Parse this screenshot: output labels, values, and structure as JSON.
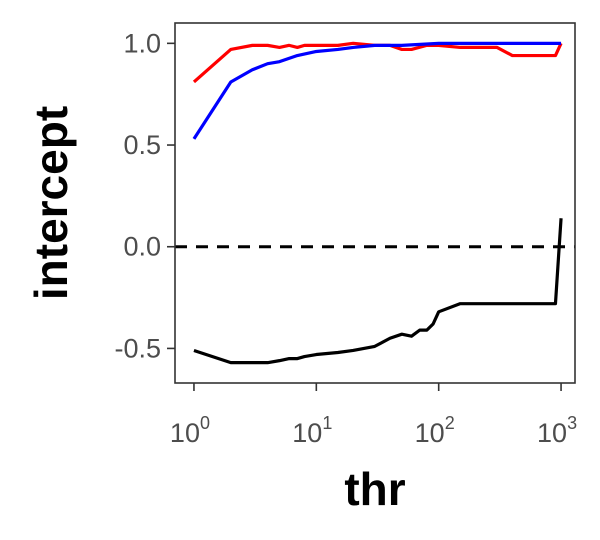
{
  "chart_data": {
    "type": "line",
    "xlabel": "thr",
    "ylabel": "intercept",
    "x_scale": "log10",
    "xlim": [
      0.7,
      1300
    ],
    "ylim": [
      -0.67,
      1.1
    ],
    "x_ticks": [
      {
        "value": 1,
        "base": "10",
        "exp": "0"
      },
      {
        "value": 10,
        "base": "10",
        "exp": "1"
      },
      {
        "value": 100,
        "base": "10",
        "exp": "2"
      },
      {
        "value": 1000,
        "base": "10",
        "exp": "3"
      }
    ],
    "y_ticks": [
      {
        "value": 1.0,
        "label": "1.0"
      },
      {
        "value": 0.5,
        "label": "0.5"
      },
      {
        "value": 0.0,
        "label": "0.0"
      },
      {
        "value": -0.5,
        "label": "-0.5"
      }
    ],
    "reference_line": {
      "y": 0,
      "style": "dashed",
      "color": "#000000"
    },
    "grid": false,
    "legend": "none",
    "series": [
      {
        "color": "#ff0000",
        "x": [
          1,
          2,
          3,
          4,
          5,
          6,
          7,
          8,
          10,
          15,
          20,
          30,
          40,
          50,
          60,
          80,
          100,
          150,
          200,
          300,
          400,
          500,
          700,
          900,
          1000
        ],
        "y": [
          0.81,
          0.97,
          0.99,
          0.99,
          0.98,
          0.99,
          0.98,
          0.99,
          0.99,
          0.99,
          1.0,
          0.99,
          0.99,
          0.97,
          0.97,
          0.99,
          0.99,
          0.98,
          0.98,
          0.98,
          0.94,
          0.94,
          0.94,
          0.94,
          1.0
        ]
      },
      {
        "color": "#0000ff",
        "x": [
          1,
          2,
          3,
          4,
          5,
          7,
          10,
          15,
          20,
          30,
          50,
          100,
          200,
          500,
          1000
        ],
        "y": [
          0.53,
          0.81,
          0.87,
          0.9,
          0.91,
          0.94,
          0.96,
          0.97,
          0.98,
          0.99,
          0.99,
          1.0,
          1.0,
          1.0,
          1.0
        ]
      },
      {
        "color": "#000000",
        "x": [
          1,
          2,
          3,
          4,
          5,
          6,
          7,
          8,
          10,
          15,
          20,
          30,
          40,
          50,
          60,
          70,
          80,
          90,
          100,
          150,
          200,
          300,
          500,
          700,
          900,
          1000
        ],
        "y": [
          -0.51,
          -0.57,
          -0.57,
          -0.57,
          -0.56,
          -0.55,
          -0.55,
          -0.54,
          -0.53,
          -0.52,
          -0.51,
          -0.49,
          -0.45,
          -0.43,
          -0.44,
          -0.41,
          -0.41,
          -0.38,
          -0.32,
          -0.28,
          -0.28,
          -0.28,
          -0.28,
          -0.28,
          -0.28,
          0.14
        ]
      }
    ]
  }
}
